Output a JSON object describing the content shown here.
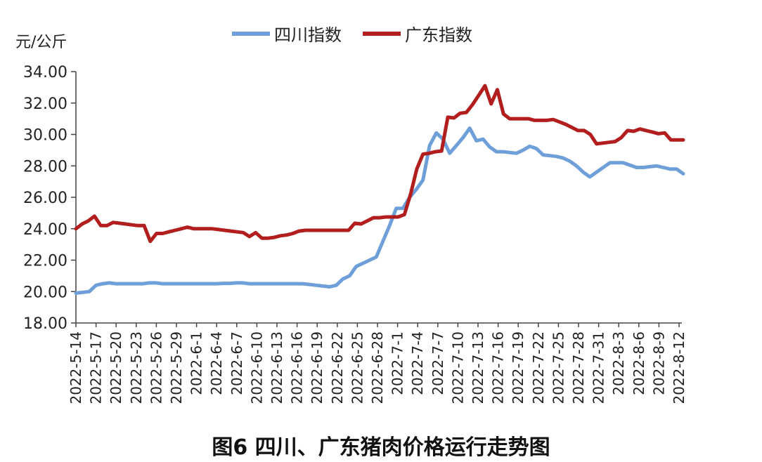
{
  "chart_data": {
    "type": "line",
    "title": "图6 四川、广东猪肉价格运行走势图",
    "ylabel": "元/公斤",
    "xlabel": "",
    "ylim": [
      18,
      34
    ],
    "yticks": [
      "18.00",
      "20.00",
      "22.00",
      "24.00",
      "26.00",
      "28.00",
      "30.00",
      "32.00",
      "34.00"
    ],
    "xticks": [
      "2022-5-14",
      "2022-5-17",
      "2022-5-20",
      "2022-5-23",
      "2022-5-26",
      "2022-5-29",
      "2022-6-1",
      "2022-6-4",
      "2022-6-7",
      "2022-6-10",
      "2022-6-13",
      "2022-6-16",
      "2022-6-19",
      "2022-6-22",
      "2022-6-25",
      "2022-6-28",
      "2022-7-1",
      "2022-7-4",
      "2022-7-7",
      "2022-7-10",
      "2022-7-13",
      "2022-7-16",
      "2022-7-19",
      "2022-7-22",
      "2022-7-25",
      "2022-7-28",
      "2022-7-31",
      "2022-8-3",
      "2022-8-6",
      "2022-8-9",
      "2022-8-12"
    ],
    "legend_position": "top",
    "series": [
      {
        "name": "四川指数",
        "color": "#6f9fd8",
        "values": [
          19.9,
          19.95,
          20.0,
          20.4,
          20.5,
          20.55,
          20.5,
          20.5,
          20.5,
          20.5,
          20.5,
          20.55,
          20.55,
          20.5,
          20.5,
          20.5,
          20.5,
          20.5,
          20.5,
          20.5,
          20.5,
          20.5,
          20.52,
          20.52,
          20.55,
          20.55,
          20.5,
          20.5,
          20.5,
          20.5,
          20.5,
          20.5,
          20.5,
          20.5,
          20.5,
          20.45,
          20.4,
          20.35,
          20.3,
          20.4,
          20.8,
          21.0,
          21.6,
          21.8,
          22.0,
          22.2,
          23.2,
          24.2,
          25.3,
          25.3,
          26.0,
          26.5,
          27.1,
          29.3,
          30.1,
          29.7,
          28.8,
          29.3,
          29.8,
          30.4,
          29.6,
          29.7,
          29.2,
          28.9,
          28.9,
          28.85,
          28.8,
          29.0,
          29.25,
          29.1,
          28.7,
          28.65,
          28.6,
          28.5,
          28.3,
          28.0,
          27.6,
          27.3,
          27.6,
          27.9,
          28.2,
          28.2,
          28.2,
          28.05,
          27.9,
          27.9,
          27.95,
          28.0,
          27.9,
          27.8,
          27.8,
          27.5
        ]
      },
      {
        "name": "广东指数",
        "color": "#b21e1e",
        "values": [
          24.0,
          24.3,
          24.5,
          24.8,
          24.2,
          24.2,
          24.4,
          24.35,
          24.3,
          24.25,
          24.2,
          24.2,
          23.2,
          23.7,
          23.7,
          23.8,
          23.9,
          24.0,
          24.1,
          24.0,
          24.0,
          24.0,
          24.0,
          23.95,
          23.9,
          23.85,
          23.8,
          23.75,
          23.5,
          23.75,
          23.4,
          23.4,
          23.45,
          23.55,
          23.6,
          23.7,
          23.85,
          23.9,
          23.9,
          23.9,
          23.9,
          23.9,
          23.9,
          23.9,
          23.9,
          24.35,
          24.3,
          24.5,
          24.7,
          24.7,
          24.75,
          24.75,
          24.75,
          24.9,
          26.2,
          27.8,
          28.75,
          28.8,
          28.9,
          28.95,
          31.1,
          31.05,
          31.35,
          31.4,
          31.9,
          32.5,
          33.1,
          31.95,
          32.85,
          31.3,
          31.0,
          31.0,
          31.0,
          31.0,
          30.9,
          30.9,
          30.9,
          30.95,
          30.8,
          30.65,
          30.45,
          30.25,
          30.25,
          30.0,
          29.4,
          29.45,
          29.5,
          29.55,
          29.8,
          30.25,
          30.2,
          30.35,
          30.25,
          30.15,
          30.05,
          30.1,
          29.65,
          29.65,
          29.65
        ]
      }
    ]
  }
}
